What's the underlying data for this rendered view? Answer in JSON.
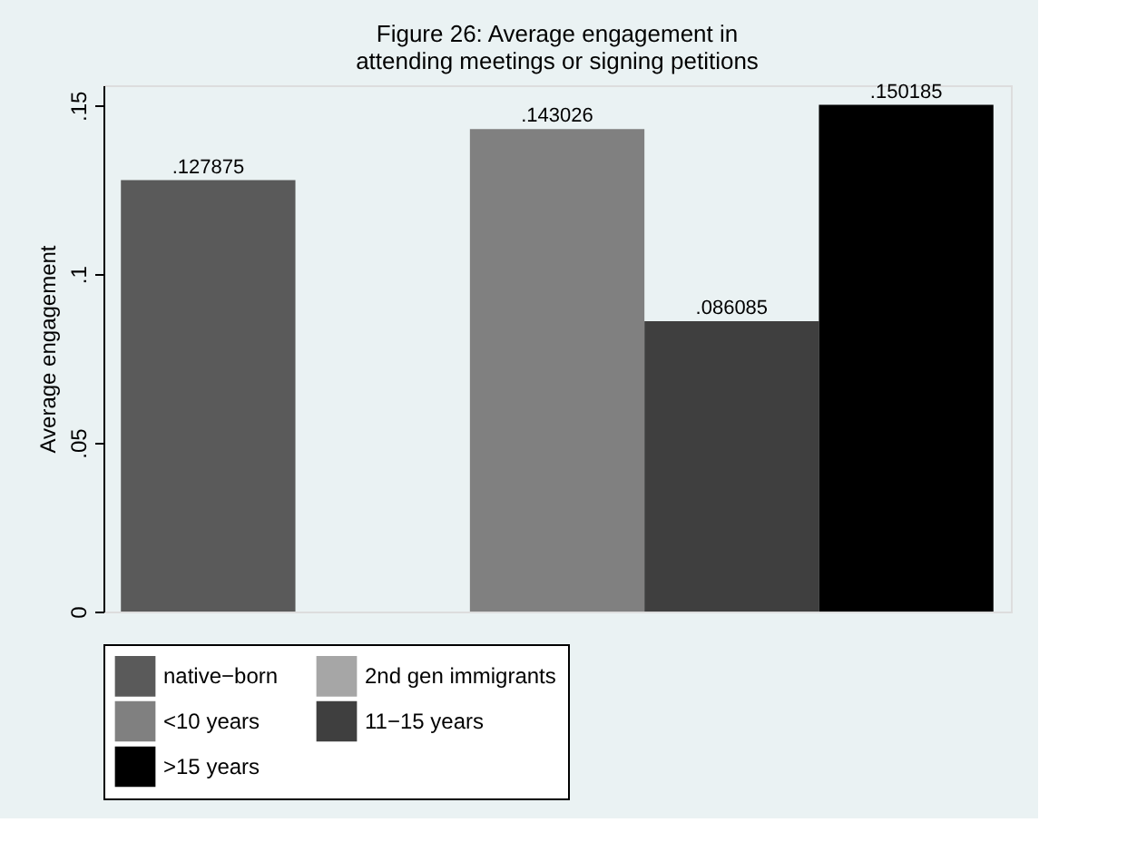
{
  "chart_data": {
    "type": "bar",
    "title": "Figure 26: Average engagement in\nattending meetings or signing petitions",
    "ylabel": "Average engagement",
    "categories": [
      null
    ],
    "series": [
      {
        "name": "native−born",
        "color": "#5a5a5a",
        "values": [
          0.127875
        ],
        "value_labels": [
          ".127875"
        ]
      },
      {
        "name": "2nd gen immigrants",
        "color": "#a6a6a6",
        "values": [
          null
        ],
        "value_labels": [
          null
        ]
      },
      {
        "name": "<10 years",
        "color": "#808080",
        "values": [
          0.143026
        ],
        "value_labels": [
          ".143026"
        ]
      },
      {
        "name": "11−15 years",
        "color": "#3f3f3f",
        "values": [
          0.086085
        ],
        "value_labels": [
          ".086085"
        ]
      },
      {
        "name": ">15 years",
        "color": "#000000",
        "values": [
          0.150185
        ],
        "value_labels": [
          ".150185"
        ]
      }
    ],
    "ylim": [
      0,
      0.156
    ],
    "yticks": [
      {
        "value": 0,
        "label": "0"
      },
      {
        "value": 0.05,
        "label": ".05"
      },
      {
        "value": 0.1,
        "label": ".1"
      },
      {
        "value": 0.15,
        "label": ".15"
      }
    ],
    "grid": false,
    "legend": "bottom"
  }
}
